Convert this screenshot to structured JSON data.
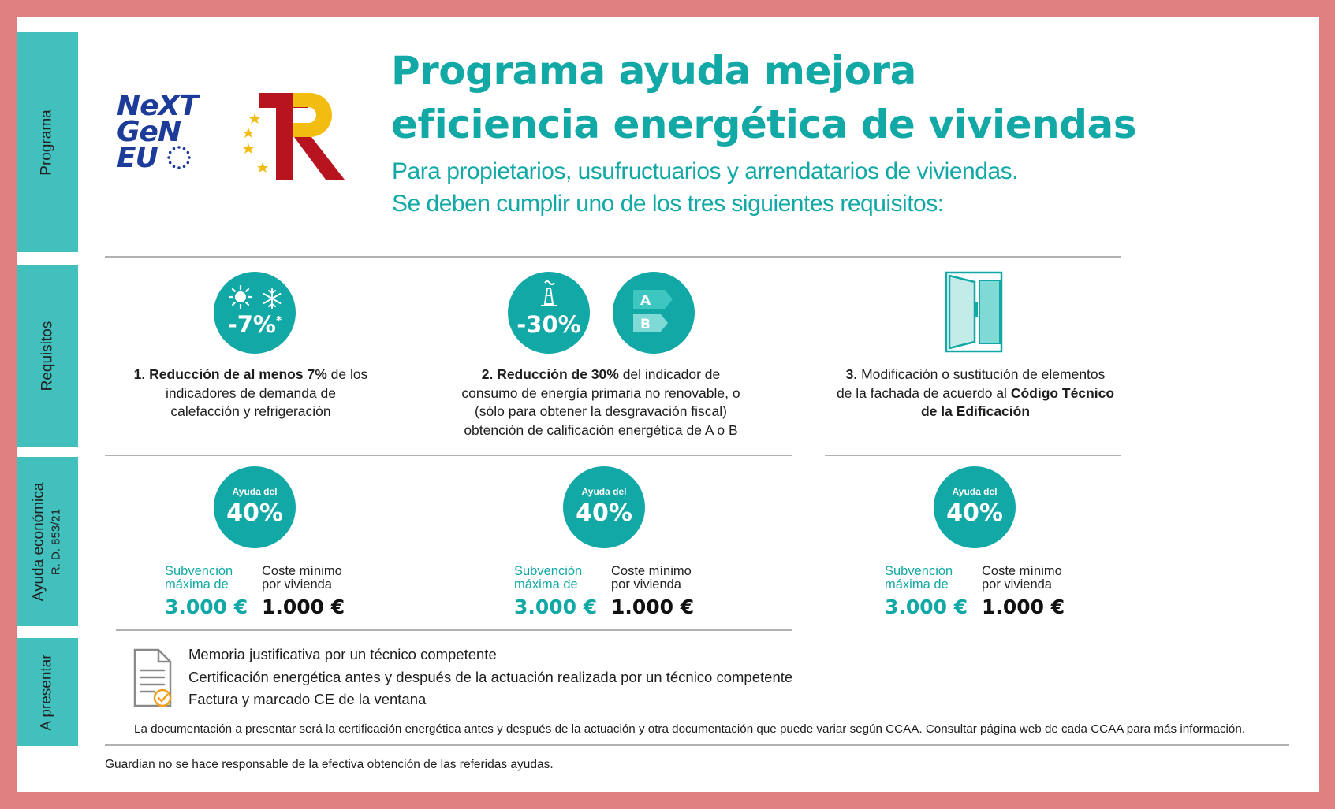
{
  "side_tabs": {
    "programa": "Programa",
    "requisitos": "Requisitos",
    "ayuda": "Ayuda económica",
    "ayuda_sub": "R. D. 853/21",
    "presentar": "A presentar"
  },
  "logos": {
    "ngeu_line1": "NeXT",
    "ngeu_line2": "GeN",
    "ngeu_line3": "EU"
  },
  "header": {
    "title_line1": "Programa ayuda mejora",
    "title_line2": "eficiencia energética de viviendas",
    "subtitle_line1": "Para propietarios, usufructuarios y arrendatarios de viviendas.",
    "subtitle_line2": "Se deben cumplir uno de los tres siguientes requisitos:"
  },
  "requirements": [
    {
      "badge": "-7%",
      "badge_mark": "*",
      "icons": [
        "sun-icon",
        "snowflake-icon"
      ],
      "text_bold1": "1. Reducción de al menos 7%",
      "text1": " de los",
      "text2": "indicadores de demanda de",
      "text3": "calefacción y refrigeración"
    },
    {
      "badge": "-30%",
      "icons": [
        "chimney-icon",
        "energy-label-icon"
      ],
      "label_a": "A",
      "label_b": "B",
      "text_bold1": "2. Reducción de 30%",
      "text1": " del indicador de",
      "text2": "consumo de energía primaria no renovable, o",
      "text3": "(sólo para obtener la desgravación fiscal)",
      "text4": "obtención de calificación energética de A o B"
    },
    {
      "icons": [
        "window-icon"
      ],
      "text_bold0": "3.",
      "text1": " Modificación o sustitución de elementos",
      "text2": "de la fachada de acuerdo al ",
      "text_bold2": "Código Técnico",
      "text_bold3": "de la Edificación"
    }
  ],
  "aid": [
    {
      "circle_small": "Ayuda del",
      "circle_big": "40%",
      "sub_label1": "Subvención",
      "sub_label2": "máxima de",
      "sub_value": "3.000 €",
      "cost_label1": "Coste mínimo",
      "cost_label2": "por vivienda",
      "cost_value": "1.000 €"
    },
    {
      "circle_small": "Ayuda del",
      "circle_big": "40%",
      "sub_label1": "Subvención",
      "sub_label2": "máxima de",
      "sub_value": "3.000 €",
      "cost_label1": "Coste mínimo",
      "cost_label2": "por vivienda",
      "cost_value": "1.000 €"
    },
    {
      "circle_small": "Ayuda del",
      "circle_big": "40%",
      "sub_label1": "Subvención",
      "sub_label2": "máxima de",
      "sub_value": "3.000 €",
      "cost_label1": "Coste mínimo",
      "cost_label2": "por vivienda",
      "cost_value": "1.000 €"
    }
  ],
  "documents": {
    "icon": "document-check-icon",
    "items": [
      "Memoria justificativa por un técnico competente",
      "Certificación energética antes y después de la actuación realizada por un técnico competente",
      "Factura y marcado CE de la ventana"
    ],
    "note": "La documentación a presentar será la certificación energética antes y después de la actuación y otra documentación que puede variar según CCAA. Consultar página web de cada CCAA para más información."
  },
  "disclaimer": "Guardian no se hace responsable de la efectiva obtención de las referidas ayudas.",
  "colors": {
    "frame": "#df8081",
    "teal": "#12a8a6",
    "tab_teal": "#42c0be",
    "eu_blue": "#1d3c99",
    "tr_red": "#b8141f",
    "tr_yellow": "#f2bd10"
  }
}
